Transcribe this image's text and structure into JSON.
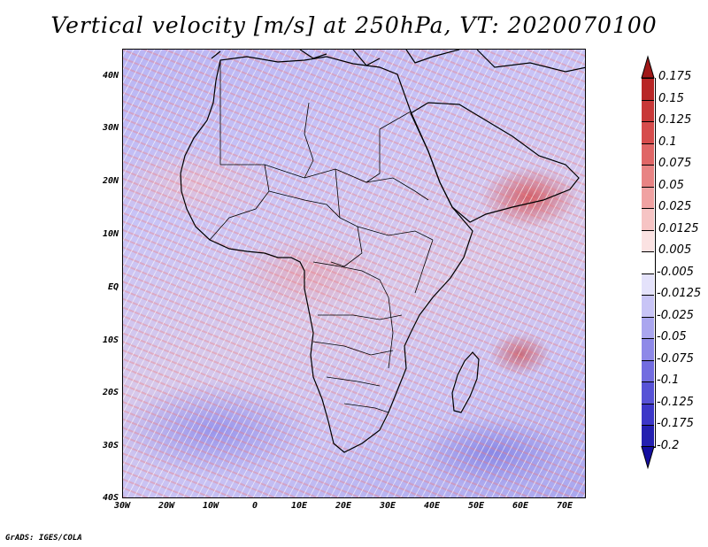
{
  "title": "Vertical velocity [m/s] at 250hPa, VT: 2020070100",
  "credit": "GrADS: IGES/COLA",
  "axes": {
    "lat_ticks": [
      "40N",
      "30N",
      "20N",
      "10N",
      "EQ",
      "10S",
      "20S",
      "30S",
      "40S"
    ],
    "lat_values": [
      40,
      30,
      20,
      10,
      0,
      -10,
      -20,
      -30,
      -40
    ],
    "lon_ticks": [
      "30W",
      "20W",
      "10W",
      "0",
      "10E",
      "20E",
      "30E",
      "40E",
      "50E",
      "60E",
      "70E"
    ],
    "lon_values": [
      -30,
      -20,
      -10,
      0,
      10,
      20,
      30,
      40,
      50,
      60,
      70
    ],
    "lon_range": [
      -30,
      75
    ],
    "lat_range": [
      -40,
      45
    ]
  },
  "colorbar": {
    "labels": [
      "0.175",
      "0.15",
      "0.125",
      "0.1",
      "0.075",
      "0.05",
      "0.025",
      "0.0125",
      "0.005",
      "-0.005",
      "-0.0125",
      "-0.025",
      "-0.05",
      "-0.075",
      "-0.1",
      "-0.125",
      "-0.175",
      "-0.2"
    ],
    "colors": [
      "#a01818",
      "#b82626",
      "#c83838",
      "#d64c4c",
      "#e06666",
      "#e88383",
      "#f0a2a2",
      "#f6c4c4",
      "#fbe2e2",
      "#ffffff",
      "#e4e2fb",
      "#c8c4f6",
      "#aaa6ef",
      "#8e89e8",
      "#726ce0",
      "#5752d6",
      "#3c37c8",
      "#2420b0",
      "#140ea0"
    ],
    "top_arrow_color": "#a01818",
    "bottom_arrow_color": "#140ea0"
  }
}
